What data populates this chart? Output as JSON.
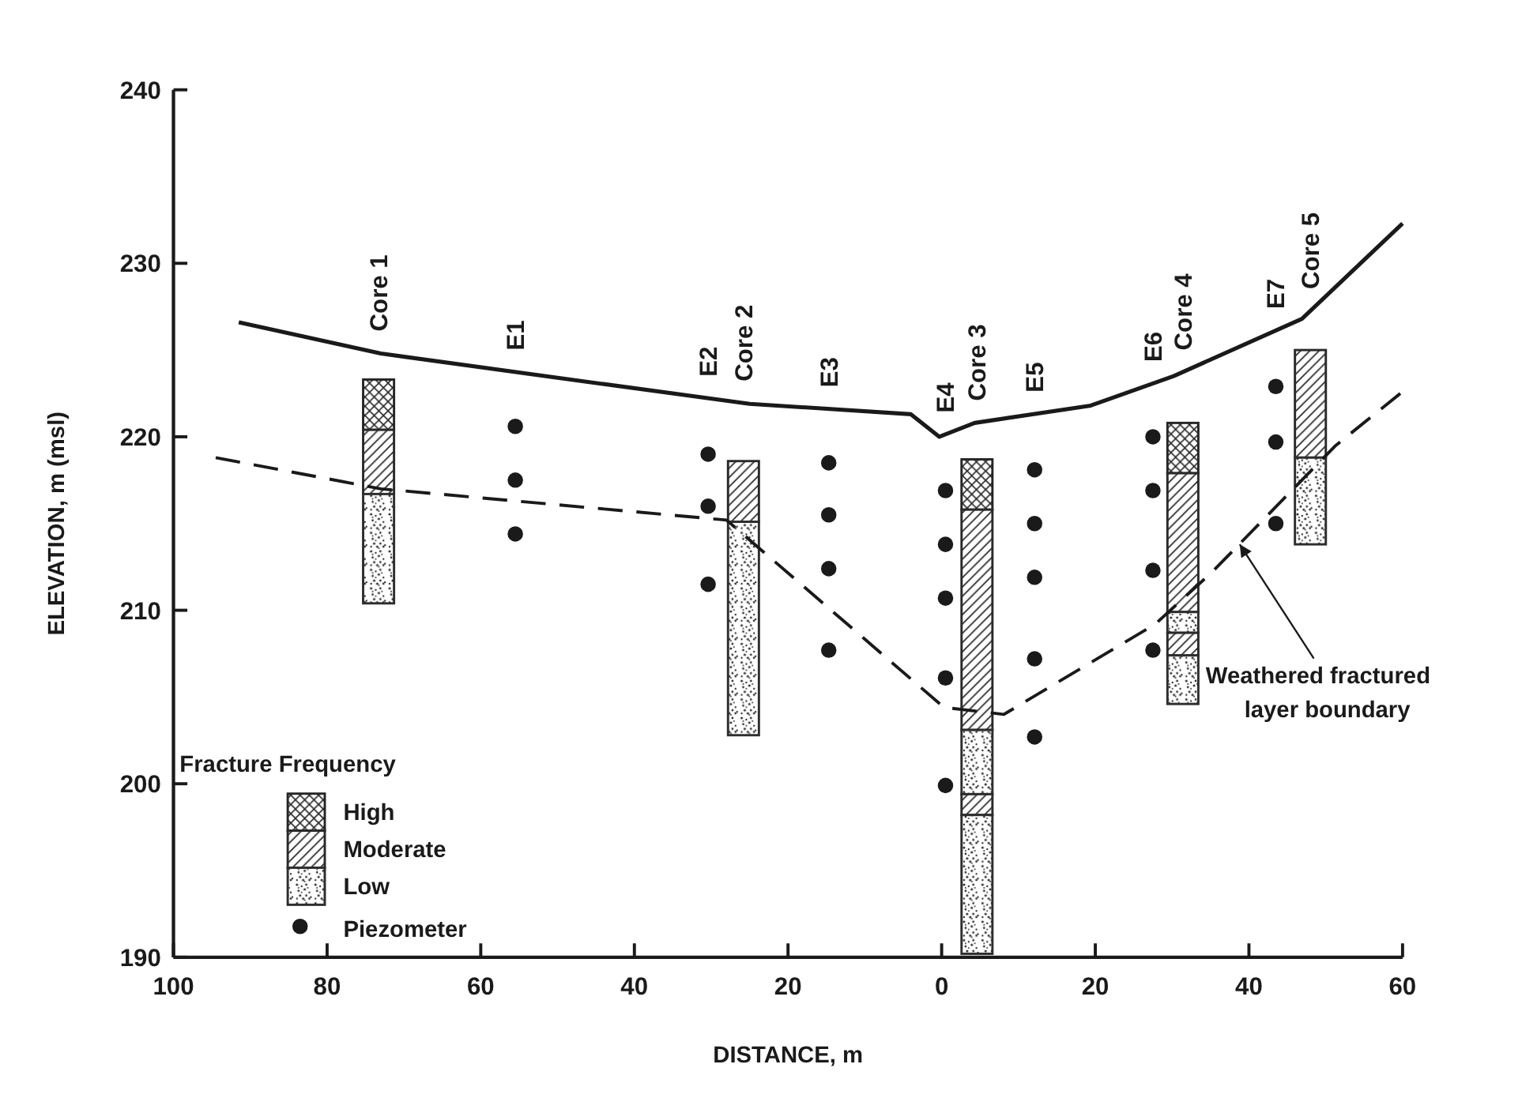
{
  "chart_data": {
    "type": "bar",
    "xlabel": "DISTANCE, m",
    "ylabel": "ELEVATION, m (msl)",
    "legend_title": "Fracture Frequency",
    "legend": "bottom left",
    "grid": false,
    "xlim": [
      -100,
      60
    ],
    "xticks": [
      {
        "value": -100,
        "label": "100"
      },
      {
        "value": -80,
        "label": "80"
      },
      {
        "value": -60,
        "label": "60"
      },
      {
        "value": -40,
        "label": "40"
      },
      {
        "value": -20,
        "label": "20"
      },
      0,
      20,
      40,
      60
    ],
    "ylim": [
      190,
      240
    ],
    "yticks": [
      190,
      200,
      210,
      220,
      230,
      240
    ],
    "series": [
      {
        "name": "High",
        "color": "#262626",
        "x": [
          -73.3,
          4.6,
          31.4
        ],
        "base": [
          220.4,
          215.8,
          217.9
        ],
        "values": [
          2.9,
          2.9,
          2.9
        ]
      },
      {
        "name": "Moderate",
        "color": "#2a2a2a",
        "x": [
          -73.3,
          -25.8,
          4.6,
          31.4,
          48
        ],
        "base": [
          216.7,
          215.1,
          203.1,
          209.9,
          218.8
        ],
        "values": [
          3.7,
          3.5,
          12.7,
          8.0,
          6.2
        ]
      },
      {
        "name": "Low",
        "color": "#2e2e2e",
        "x": [
          -73.3,
          -25.8,
          4.6,
          31.4,
          48
        ],
        "base": [
          210.4,
          202.8,
          199.4,
          208.7,
          213.8
        ],
        "values": [
          6.3,
          12.3,
          3.7,
          1.2,
          5.0
        ]
      },
      {
        "color": "#2a2a2a",
        "x": [
          4.6,
          31.4
        ],
        "base": [
          198.2,
          207.4
        ],
        "values": [
          1.2,
          1.3
        ]
      },
      {
        "color": "#2e2e2e",
        "x": [
          4.6,
          31.4
        ],
        "base": [
          190.2,
          204.6
        ],
        "values": [
          8.0,
          2.8
        ]
      },
      {
        "name": "Piezometer",
        "type": "scatter",
        "marker": "circle",
        "color": "#1a1a1a",
        "x": [
          -55.5,
          -55.5,
          -55.5,
          -30.4,
          -30.4,
          -30.4,
          -14.7,
          -14.7,
          -14.7,
          -14.7,
          0.5,
          0.5,
          0.5,
          0.5,
          0.5,
          12.1,
          12.1,
          12.1,
          12.1,
          12.1,
          27.5,
          27.5,
          27.5,
          27.5,
          43.5,
          43.5,
          43.5
        ],
        "values": [
          220.6,
          217.5,
          214.4,
          219.0,
          216.0,
          211.5,
          218.5,
          215.5,
          212.4,
          207.7,
          216.9,
          213.8,
          210.7,
          206.1,
          199.9,
          218.1,
          215.0,
          211.9,
          207.2,
          202.7,
          220.0,
          216.9,
          212.3,
          207.7,
          222.9,
          219.7,
          215.0
        ]
      },
      {
        "type": "line",
        "color": "#1a1a1a",
        "line_style": "solid",
        "x": [
          -91.5,
          -73,
          -50,
          -25,
          -4,
          -0.3,
          4.3,
          19.4,
          30.2,
          46.9,
          60
        ],
        "values": [
          226.6,
          224.8,
          223.4,
          221.9,
          221.3,
          220.0,
          220.8,
          221.8,
          223.5,
          226.8,
          232.3
        ]
      },
      {
        "type": "line",
        "color": "#1a1a1a",
        "line_style": "dashed",
        "x": [
          -94.5,
          -73,
          -28,
          0.3,
          8.1,
          27.8,
          35.2,
          51.3,
          60
        ],
        "values": [
          218.8,
          217.0,
          215.2,
          204.4,
          204.0,
          209.2,
          212.2,
          219.5,
          222.6
        ]
      }
    ],
    "annotations": [
      "Core 1",
      "E1",
      "E2",
      "Core 2",
      "E3",
      "E4",
      "Core 3",
      "E5",
      "E6",
      "Core 4",
      "E7",
      "Core 5",
      {
        "text": "Weathered fractured layer boundary",
        "x": 38.8,
        "y": 213.8
      }
    ]
  }
}
